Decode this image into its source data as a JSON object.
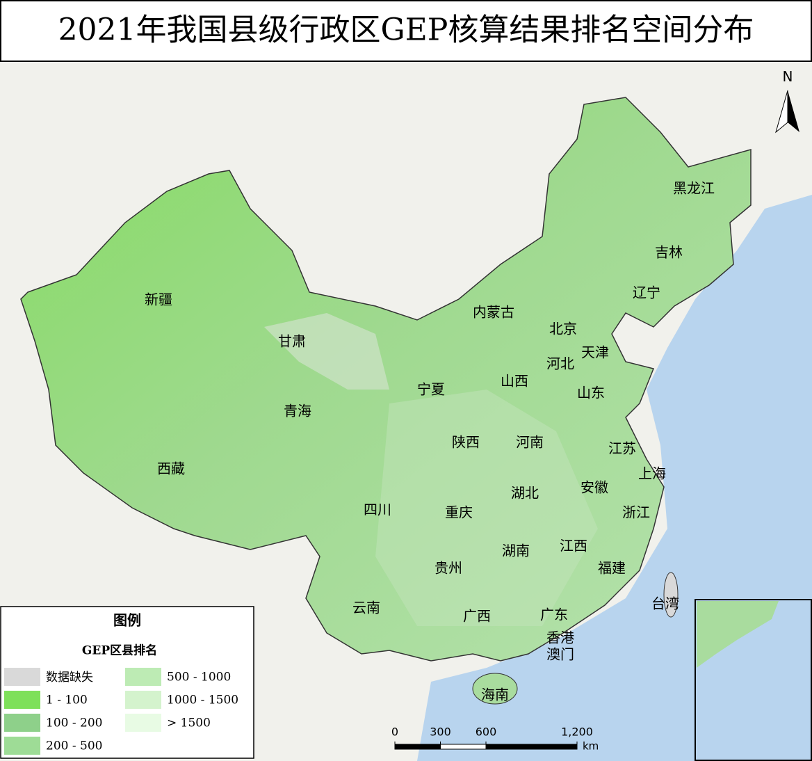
{
  "title": "2021年我国县级行政区GEP核算结果排名空间分布",
  "north": "N",
  "regions": [
    "黑龙江",
    "吉林",
    "辽宁",
    "内蒙古",
    "北京",
    "天津",
    "河北",
    "山西",
    "山东",
    "宁夏",
    "甘肃",
    "新疆",
    "青海",
    "西藏",
    "陕西",
    "河南",
    "江苏",
    "上海",
    "安徽",
    "湖北",
    "浙江",
    "四川",
    "重庆",
    "湖南",
    "江西",
    "福建",
    "贵州",
    "云南",
    "广西",
    "广东",
    "香港",
    "澳门",
    "台湾",
    "海南"
  ],
  "legend": {
    "title": "图例",
    "subtitle": "GEP区县排名",
    "items": [
      {
        "label": "数据缺失",
        "color": "#d9d9d9"
      },
      {
        "label": "1 - 100",
        "color": "#7ee05a"
      },
      {
        "label": "100 - 200",
        "color": "#8ed08a"
      },
      {
        "label": "200 - 500",
        "color": "#9edc96"
      },
      {
        "label": "500 - 1000",
        "color": "#bdebb4"
      },
      {
        "label": "1000 - 1500",
        "color": "#d4f3cd"
      },
      {
        "label": "> 1500",
        "color": "#e8fbe4"
      }
    ]
  },
  "scale_bar": {
    "ticks": [
      0,
      300,
      600,
      {
        "value": 1200,
        "label": "1,200"
      }
    ],
    "unit": "km"
  }
}
